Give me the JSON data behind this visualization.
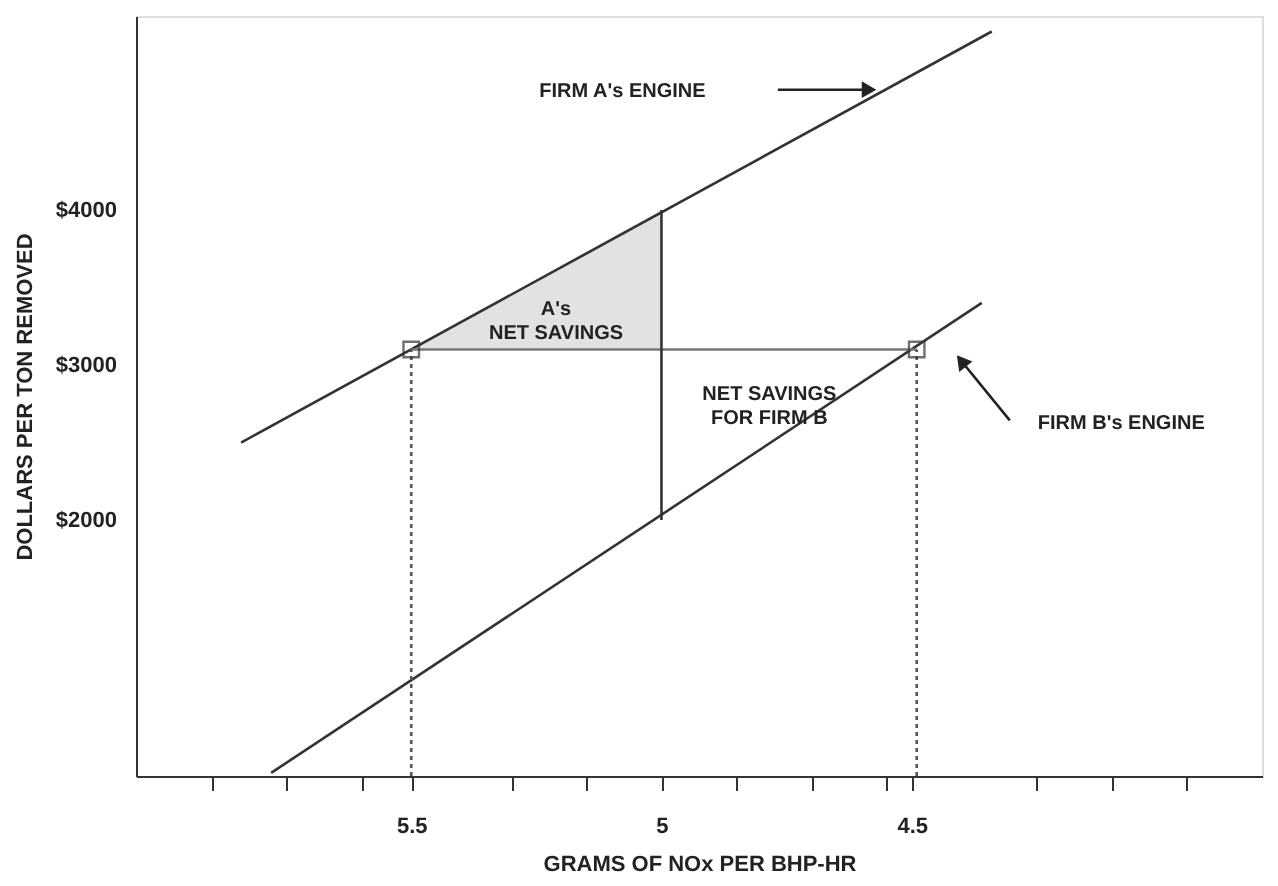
{
  "chart_data": {
    "type": "line",
    "xlabel": "GRAMS OF NOx PER BHP-HR",
    "ylabel": "DOLLARS PER TON REMOVED",
    "xlim": [
      6.05,
      3.8
    ],
    "ylim": [
      350,
      5250
    ],
    "xticks": [
      {
        "value": 5.9,
        "label": null
      },
      {
        "value": 5.75,
        "label": null
      },
      {
        "value": 5.6,
        "label": null
      },
      5.5,
      {
        "value": 5.3,
        "label": null
      },
      {
        "value": 5.15,
        "label": null
      },
      5,
      {
        "value": 4.85,
        "label": null
      },
      {
        "value": 4.7,
        "label": null
      },
      {
        "value": 4.55,
        "label": null
      },
      4.5,
      {
        "value": 4.25,
        "label": null
      },
      {
        "value": 4.1,
        "label": null
      },
      {
        "value": 3.95,
        "label": null
      }
    ],
    "yticks": [
      {
        "value": 2000,
        "label": "$2000"
      },
      {
        "value": 3000,
        "label": "$3000"
      },
      {
        "value": 4000,
        "label": "$4000"
      }
    ],
    "grid": false,
    "series": [
      {
        "type": "area",
        "color": "#e2e2e2",
        "x": [
          5.5,
          5
        ],
        "values": [
          3100,
          4000
        ]
      },
      {
        "color": "#333333",
        "x": [
          5.84,
          4.34
        ],
        "values": [
          2500,
          5150
        ]
      },
      {
        "color": "#333333",
        "x": [
          5.78,
          4.36
        ],
        "values": [
          370,
          3400
        ]
      },
      {
        "color": "#777777",
        "x": [
          5.5,
          4.49
        ],
        "values": [
          3100,
          3100
        ]
      },
      {
        "color": "#333333",
        "x": [
          5,
          5
        ],
        "values": [
          2000,
          4000
        ]
      },
      {
        "color": "#555555",
        "line_style": "dotted",
        "x": [
          5.5,
          5.5
        ],
        "values": [
          350,
          3100
        ]
      },
      {
        "color": "#555555",
        "line_style": "dotted",
        "x": [
          4.49,
          4.49
        ],
        "values": [
          350,
          3100
        ]
      },
      {
        "type": "scatter",
        "color": "#333333",
        "marker": "square",
        "x": [
          5.5,
          4.49
        ],
        "values": [
          3100,
          3100
        ]
      }
    ],
    "annotations": [
      "FIRM A's ENGINE",
      "A's\nNET SAVINGS",
      "NET SAVINGS\nFOR FIRM B",
      "FIRM B's ENGINE"
    ]
  }
}
